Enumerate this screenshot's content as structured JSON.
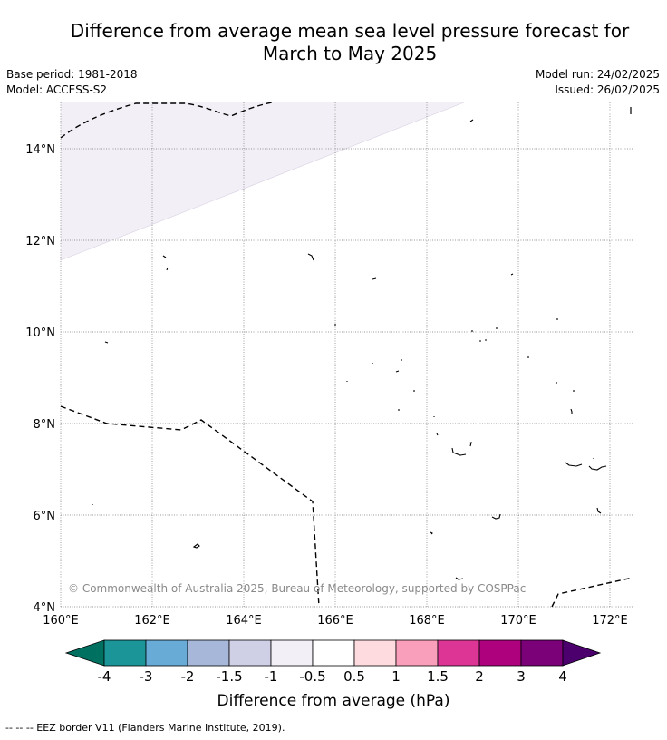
{
  "title_line1": "Difference from average mean sea level pressure forecast for",
  "title_line2": "March to May 2025",
  "meta": {
    "base_period": "Base period: 1981-2018",
    "model": "Model: ACCESS-S2",
    "model_run": "Model run: 24/02/2025",
    "issued": "Issued: 26/02/2025"
  },
  "map": {
    "lon_labels": [
      "160°E",
      "162°E",
      "164°E",
      "166°E",
      "168°E",
      "170°E",
      "172°E"
    ],
    "lat_labels": [
      "4°N",
      "6°N",
      "8°N",
      "10°N",
      "12°N",
      "14°N"
    ],
    "copyright": "© Commonwealth of Australia 2025, Bureau of Meteorology, supported by COSPPac",
    "shaded_category": "-1 to -0.5",
    "shade_color": "#f3eff6"
  },
  "colorbar": {
    "labels": [
      "-4",
      "-3",
      "-2",
      "-1.5",
      "-1",
      "-0.5",
      "0.5",
      "1",
      "1.5",
      "2",
      "3",
      "4"
    ],
    "colors": [
      "#007061",
      "#1c9599",
      "#68abd6",
      "#a6b7da",
      "#cfcfe6",
      "#f3eff6",
      "#ffffff",
      "#fddbdf",
      "#f99ebb",
      "#dc3596",
      "#ad017e",
      "#7a0178",
      "#4b006e"
    ],
    "axis_label": "Difference from average (hPa)"
  },
  "footer": "--  --  -- EEZ border V11 (Flanders Marine Institute, 2019)."
}
